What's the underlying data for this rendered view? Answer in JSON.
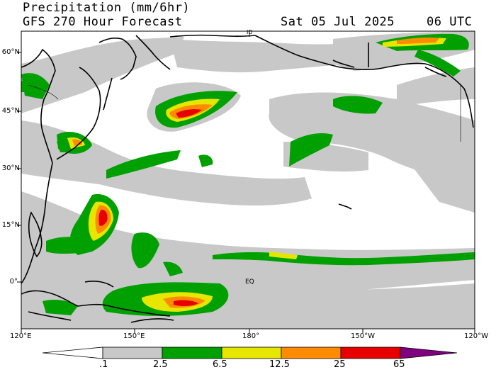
{
  "header": {
    "title": "Precipitation (mm/6hr)",
    "forecast": "GFS 270 Hour Forecast",
    "valid_date": "Sat 05 Jul 2025",
    "valid_time": "06 UTC"
  },
  "map": {
    "projection": "cylindrical",
    "lon_range": [
      120,
      240
    ],
    "lat_range": [
      -13,
      66
    ],
    "lat_labels": [
      "60°N",
      "45°N",
      "30°N",
      "15°N",
      "0°"
    ],
    "lon_labels": [
      "120°E",
      "150°E",
      "180°",
      "150°W",
      "120°W"
    ],
    "eq_label": "EQ",
    "dateline_label": "ID"
  },
  "colorbar": {
    "levels": [
      ".1",
      "2.5",
      "6.5",
      "12.5",
      "25",
      "65"
    ],
    "colors": [
      "#c8c8c8",
      "#00a000",
      "#e6e600",
      "#ff8c00",
      "#e60000",
      "#800080"
    ]
  }
}
